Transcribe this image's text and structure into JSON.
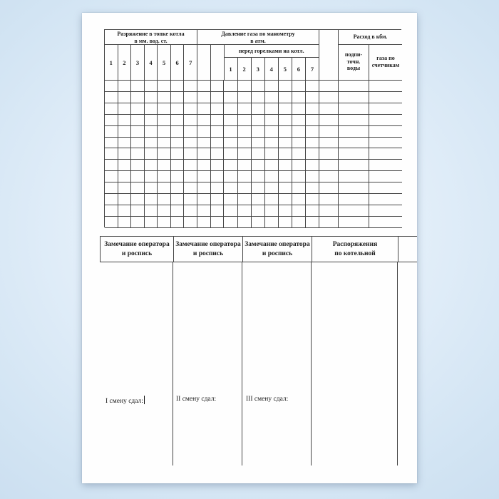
{
  "page": {
    "background_color": "#d2e4f3",
    "paper_color": "#fefefe",
    "line_color": "#454545",
    "text_color": "#1c1c1c"
  },
  "top_table": {
    "section_vacuum": {
      "title_line1": "Разряжение в топке котла",
      "title_line2": "в мм. вод. ст.",
      "columns": [
        "1",
        "2",
        "3",
        "4",
        "5",
        "6",
        "7"
      ]
    },
    "section_gas_pressure": {
      "title_line1": "Давление газа по манометру",
      "title_line2": "в атм.",
      "subtitle": "перед горелками на котл.",
      "columns": [
        "1",
        "2",
        "3",
        "4",
        "5",
        "6",
        "7"
      ]
    },
    "section_consumption": {
      "title": "Расход в кбм.",
      "water_line1": "подпи-",
      "water_line2": "точн.",
      "water_line3": "воды",
      "gas_line1": "газа по",
      "gas_line2": "счетчикам"
    },
    "body_rows": 13,
    "body_cols": 19
  },
  "bottom_table": {
    "headers": [
      {
        "line1": "Замечание оператора",
        "line2": "и роспись"
      },
      {
        "line1": "Замечание оператора",
        "line2": "и роспись"
      },
      {
        "line1": "Замечание оператора",
        "line2": "и роспись"
      },
      {
        "line1": "Распоряжения",
        "line2": "по котельной"
      }
    ],
    "shift_notes": [
      "I смену сдал:",
      "II смену сдал:",
      "III смену сдал:"
    ]
  }
}
